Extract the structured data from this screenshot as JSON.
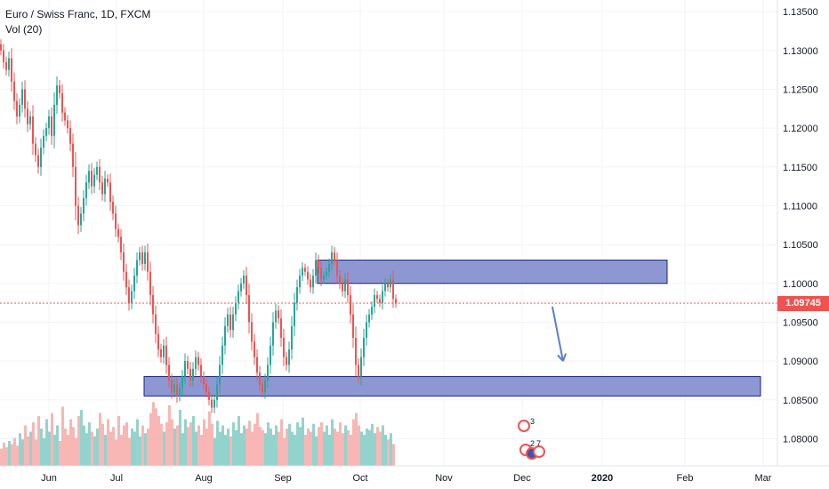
{
  "legend": {
    "symbol": "Euro / Swiss Franc, 1D, FXCM",
    "volume": "Vol (20)"
  },
  "last_price": {
    "label": "1.09745",
    "value": 1.09745,
    "color": "#ef5350"
  },
  "badges": [
    "3",
    "2",
    "7"
  ],
  "colors": {
    "up": "#26a69a",
    "down": "#ef5350",
    "up_volume": "#80cbc4",
    "down_volume": "#f7a9a7",
    "zone_fill": "#7986cb",
    "zone_stroke": "#1a237e",
    "arrow": "#5b7ec9",
    "grid": "#f0f3fa",
    "axis_text": "#131722"
  },
  "chart_data": {
    "type": "candlestick",
    "title": "Euro / Swiss Franc, 1D, FXCM",
    "x_ticks": [
      "Jun",
      "Jul",
      "Aug",
      "Sep",
      "Oct",
      "Nov",
      "Dec",
      "2020",
      "Feb",
      "Mar"
    ],
    "y_ticks": [
      "1.13500",
      "1.13000",
      "1.12500",
      "1.12000",
      "1.11500",
      "1.11000",
      "1.10500",
      "1.10000",
      "1.09500",
      "1.09000",
      "1.08500",
      "1.08000"
    ],
    "ylim": [
      1.0765,
      1.1365
    ],
    "grid": true,
    "closes": [
      1.13,
      1.1285,
      1.1275,
      1.129,
      1.126,
      1.1235,
      1.1215,
      1.123,
      1.125,
      1.1225,
      1.1205,
      1.1215,
      1.118,
      1.1165,
      1.115,
      1.1175,
      1.119,
      1.12,
      1.1215,
      1.119,
      1.123,
      1.1255,
      1.1245,
      1.122,
      1.121,
      1.12,
      1.118,
      1.115,
      1.11,
      1.1075,
      1.109,
      1.111,
      1.113,
      1.1145,
      1.1125,
      1.114,
      1.115,
      1.113,
      1.1115,
      1.1135,
      1.113,
      1.1105,
      1.109,
      1.107,
      1.106,
      1.104,
      1.1015,
      1.0995,
      1.0975,
      1.099,
      1.101,
      1.103,
      1.104,
      1.1025,
      1.104,
      1.1015,
      1.0985,
      1.096,
      1.0935,
      1.0915,
      1.0905,
      1.092,
      1.0895,
      1.0875,
      1.086,
      1.087,
      1.0855,
      1.0865,
      1.088,
      1.09,
      1.089,
      1.0875,
      1.089,
      1.0905,
      1.0895,
      1.088,
      1.087,
      1.086,
      1.085,
      1.084,
      1.085,
      1.087,
      1.0895,
      1.092,
      1.0945,
      1.096,
      1.094,
      1.096,
      1.0975,
      1.099,
      1.1,
      1.101,
      1.0985,
      1.095,
      1.0925,
      1.0905,
      1.0885,
      1.087,
      1.086,
      1.0875,
      1.0895,
      1.092,
      1.095,
      1.0965,
      1.0955,
      1.093,
      1.0905,
      1.0895,
      1.0915,
      1.0945,
      1.0975,
      1.0995,
      1.101,
      1.102,
      1.1015,
      1.1005,
      1.0995,
      1.101,
      1.103,
      1.102,
      1.1005,
      1.101,
      1.1015,
      1.1025,
      1.104,
      1.103,
      1.101,
      1.1,
      1.099,
      1.1005,
      1.0985,
      1.096,
      1.093,
      1.0895,
      1.088,
      1.0905,
      1.093,
      1.095,
      1.096,
      1.097,
      1.0985,
      1.098,
      1.0975,
      1.099,
      1.1,
      1.0995,
      1.1005,
      1.098,
      1.09745
    ],
    "volumes": [
      0.55,
      0.75,
      0.6,
      0.8,
      0.7,
      0.9,
      0.65,
      1.05,
      0.85,
      1.3,
      0.95,
      1.1,
      1.4,
      0.85,
      1.6,
      1.2,
      0.9,
      1.5,
      1.1,
      1.7,
      1.0,
      1.3,
      0.8,
      1.9,
      1.2,
      1.0,
      1.5,
      1.25,
      0.9,
      1.6,
      1.8,
      1.3,
      1.05,
      1.4,
      1.1,
      0.95,
      1.2,
      1.7,
      1.35,
      1.0,
      1.5,
      1.1,
      1.25,
      0.85,
      1.6,
      1.0,
      1.3,
      1.4,
      0.9,
      1.2,
      1.1,
      1.5,
      0.95,
      1.3,
      1.05,
      1.2,
      1.7,
      2.05,
      1.85,
      1.6,
      1.35,
      1.1,
      1.4,
      1.95,
      1.5,
      1.2,
      1.3,
      1.8,
      1.05,
      1.5,
      1.25,
      1.4,
      1.6,
      1.1,
      1.3,
      1.0,
      1.5,
      1.2,
      1.75,
      1.35,
      0.9,
      1.45,
      1.1,
      1.3,
      1.0,
      1.2,
      0.95,
      1.4,
      1.15,
      1.6,
      1.05,
      1.3,
      1.2,
      1.45,
      1.1,
      1.35,
      1.7,
      1.25,
      1.15,
      1.05,
      1.4,
      1.2,
      1.0,
      1.3,
      1.1,
      1.5,
      0.9,
      1.2,
      1.35,
      1.1,
      1.0,
      1.4,
      1.25,
      1.55,
      1.0,
      1.2,
      1.1,
      1.35,
      0.95,
      1.25,
      1.4,
      1.1,
      1.3,
      1.0,
      1.5,
      1.2,
      1.1,
      1.4,
      1.05,
      1.3,
      1.15,
      1.0,
      1.5,
      1.7,
      1.3,
      1.1,
      1.0,
      1.2,
      1.15,
      1.35,
      1.05,
      1.25,
      1.1,
      1.3,
      1.0,
      0.85,
      1.05,
      0.7
    ],
    "zones": [
      {
        "from_index": 119,
        "to_index": 250,
        "low": 1.1,
        "high": 1.103
      },
      {
        "from_index": 54,
        "to_index": 285,
        "low": 1.0855,
        "high": 1.088
      }
    ],
    "projection_arrow": {
      "from_index": 207,
      "from_price": 1.097,
      "to_index": 211,
      "to_price": 1.09
    }
  }
}
